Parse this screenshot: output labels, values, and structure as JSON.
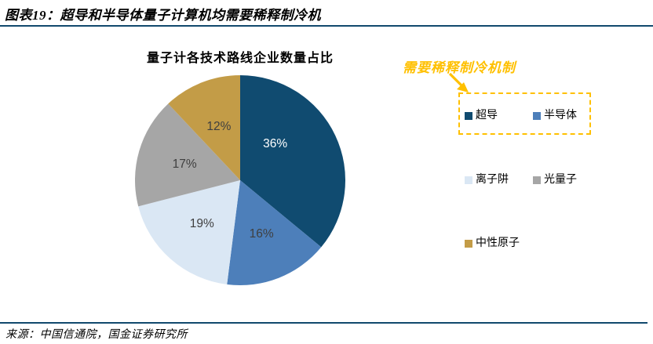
{
  "header": {
    "title": "图表19：超导和半导体量子计算机均需要稀释制冷机"
  },
  "annotation": {
    "text": "需要稀释制冷机制"
  },
  "chart_data": {
    "type": "pie",
    "title": "量子计各技术路线企业数量占比",
    "start_angle_deg": 0,
    "direction": "clockwise",
    "legend_position": "right",
    "slices": [
      {
        "label": "超导",
        "value": 36,
        "display": "36%",
        "color": "#104B70",
        "label_color": "#FFFFFF"
      },
      {
        "label": "半导体",
        "value": 16,
        "display": "16%",
        "color": "#4D7FBA",
        "label_color": "#3F3F3F"
      },
      {
        "label": "离子阱",
        "value": 19,
        "display": "19%",
        "color": "#DAE7F4",
        "label_color": "#3F3F3F"
      },
      {
        "label": "光量子",
        "value": 17,
        "display": "17%",
        "color": "#A6A6A6",
        "label_color": "#3F3F3F"
      },
      {
        "label": "中性原子",
        "value": 12,
        "display": "12%",
        "color": "#C39C47",
        "label_color": "#3F3F3F"
      }
    ],
    "annotation_group": "slices 0-1 boxed: 需要稀释制冷机制"
  },
  "footer": {
    "source": "来源：中国信通院，国金证券研究所"
  },
  "colors": {
    "accent": "#FFC000",
    "rule": "#11496D"
  }
}
